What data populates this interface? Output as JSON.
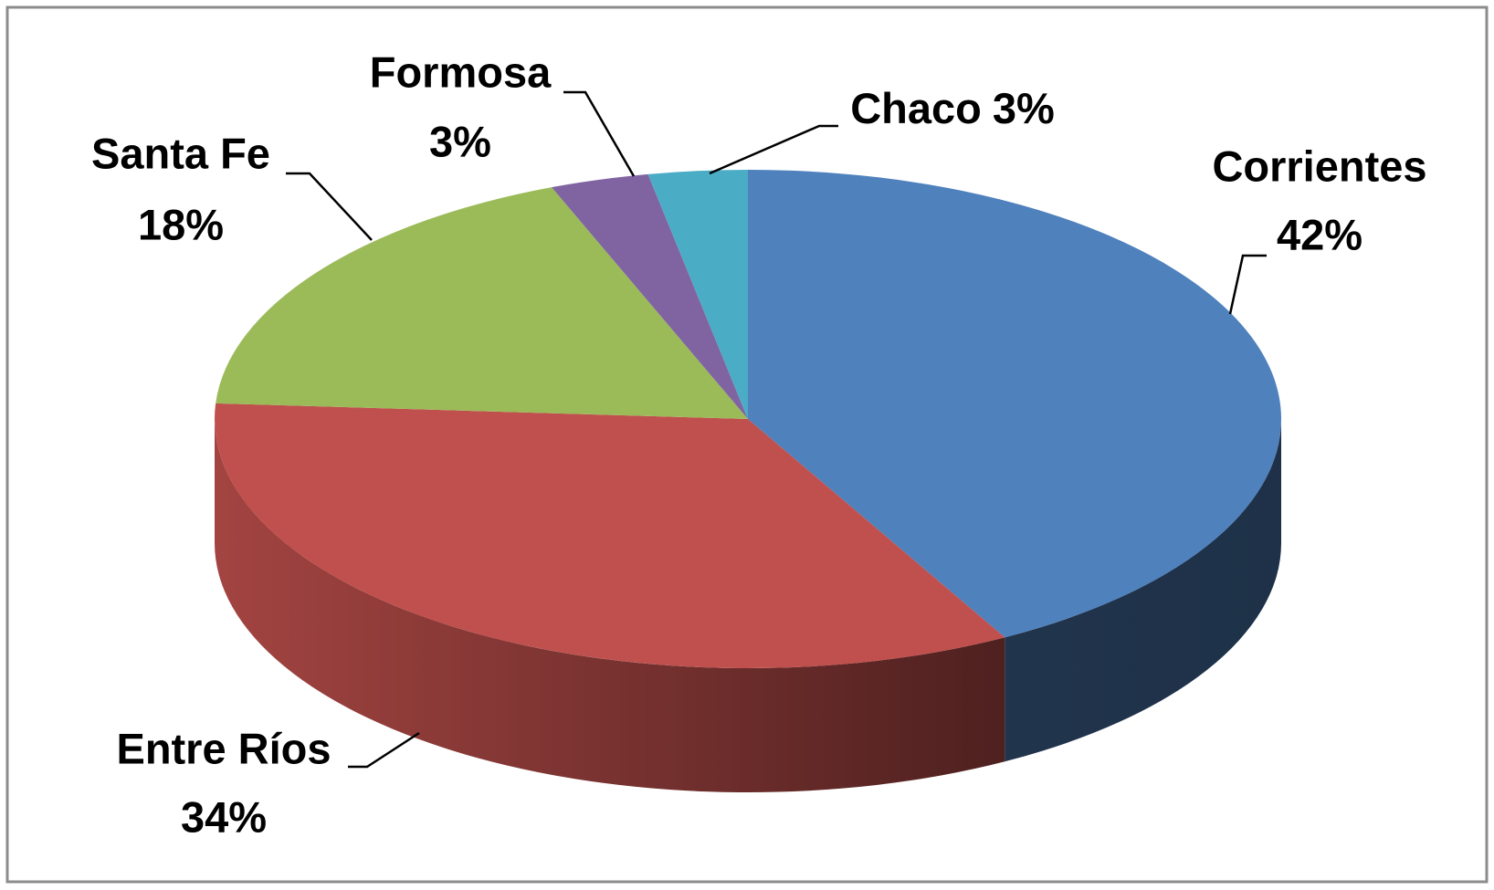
{
  "chart_data": {
    "type": "pie3d",
    "categories": [
      "Corrientes",
      "Entre Ríos",
      "Santa Fe",
      "Formosa",
      "Chaco"
    ],
    "values": [
      42,
      34,
      18,
      3,
      3
    ],
    "value_labels": [
      "42%",
      "34%",
      "18%",
      "3%",
      "3%"
    ],
    "colors": [
      "#4f81bd",
      "#c0504d",
      "#9bbb59",
      "#8064a2",
      "#4bacc6"
    ]
  }
}
